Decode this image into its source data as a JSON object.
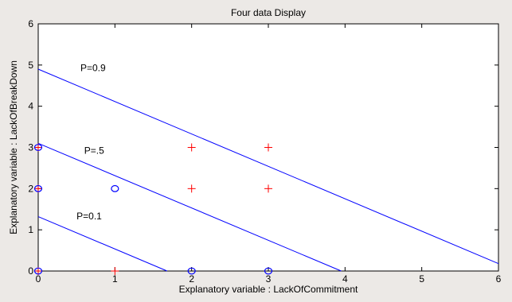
{
  "chart_data": {
    "type": "scatter",
    "title": "Four data Display",
    "xlabel": "Explanatory variable : LackOfCommitment",
    "ylabel": "Explanatory variable : LackOfBreakDown",
    "xlim": [
      0,
      6
    ],
    "ylim": [
      0,
      6
    ],
    "xticks": [
      0,
      1,
      2,
      3,
      4,
      5,
      6
    ],
    "yticks": [
      0,
      1,
      2,
      3,
      4,
      5,
      6
    ],
    "grid": false,
    "colors": {
      "background": "#ece9e6",
      "axes_background": "#ffffff",
      "lines": "#0000ff",
      "plus_marker": "#ff0000",
      "circle_marker": "#0000ff",
      "axis": "#000000"
    },
    "series": [
      {
        "marker": "plus",
        "color": "#ff0000",
        "points": [
          [
            0,
            0
          ],
          [
            0,
            2
          ],
          [
            0,
            3
          ],
          [
            1,
            0
          ],
          [
            2,
            2
          ],
          [
            2,
            3
          ],
          [
            3,
            2
          ],
          [
            3,
            3
          ]
        ]
      },
      {
        "marker": "circle",
        "color": "#0000ff",
        "points": [
          [
            0,
            0
          ],
          [
            0,
            2
          ],
          [
            0,
            3
          ],
          [
            1,
            2
          ],
          [
            2,
            0
          ],
          [
            3,
            0
          ]
        ]
      }
    ],
    "lines": [
      {
        "label": "P=0.9",
        "x": [
          0,
          6
        ],
        "y": [
          4.9,
          0.18
        ]
      },
      {
        "label": "P=.5",
        "x": [
          0,
          3.95
        ],
        "y": [
          3.1,
          0
        ]
      },
      {
        "label": "P=0.1",
        "x": [
          0,
          1.68
        ],
        "y": [
          1.32,
          0
        ]
      }
    ],
    "annotations": [
      {
        "text": "P=0.9",
        "x": 0.55,
        "y": 4.85
      },
      {
        "text": "P=.5",
        "x": 0.6,
        "y": 2.85
      },
      {
        "text": "P=0.1",
        "x": 0.5,
        "y": 1.25
      }
    ]
  }
}
